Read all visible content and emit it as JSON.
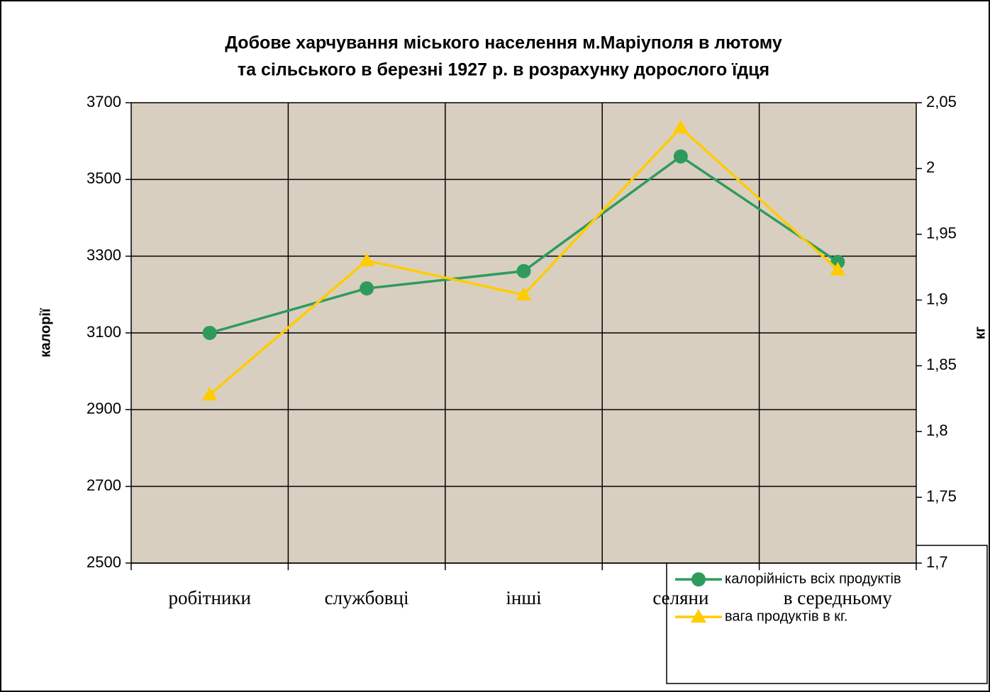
{
  "chart_data": {
    "type": "line",
    "title": [
      "Добове харчування  міського населення м.Маріуполя в лютому",
      "та сільського в березні 1927 р. в розрахунку дорослого їдця"
    ],
    "ylabel": "калорії",
    "y2label": "кг",
    "categories": [
      "робітники",
      "службовці",
      "інші",
      "селяни",
      "в середньому"
    ],
    "series": [
      {
        "name": "калорійність всіх продуктів",
        "color": "#2e9b5c",
        "marker": "circle",
        "values": [
          3100,
          3216,
          3261,
          3560,
          3285
        ]
      },
      {
        "name": "вага продуктів в кг.",
        "color": "#ffcc00",
        "marker": "triangle",
        "axis": "y2",
        "values": [
          1.828,
          1.93,
          1.904,
          2.031,
          1.923
        ]
      }
    ],
    "ylim": [
      2500,
      3700
    ],
    "yticks": [
      2500,
      2700,
      2900,
      3100,
      3300,
      3500,
      3700
    ],
    "y2lim": [
      1.7,
      2.05
    ],
    "y2ticks": [
      {
        "value": 1.7,
        "label": "1,7"
      },
      {
        "value": 1.75,
        "label": "1,75"
      },
      {
        "value": 1.8,
        "label": "1,8"
      },
      {
        "value": 1.85,
        "label": "1,85"
      },
      {
        "value": 1.9,
        "label": "1,9"
      },
      {
        "value": 1.95,
        "label": "1,95"
      },
      2,
      {
        "value": 2.05,
        "label": "2,05"
      }
    ],
    "grid": true,
    "legend": "lower right",
    "background": "#d9cfc1"
  }
}
